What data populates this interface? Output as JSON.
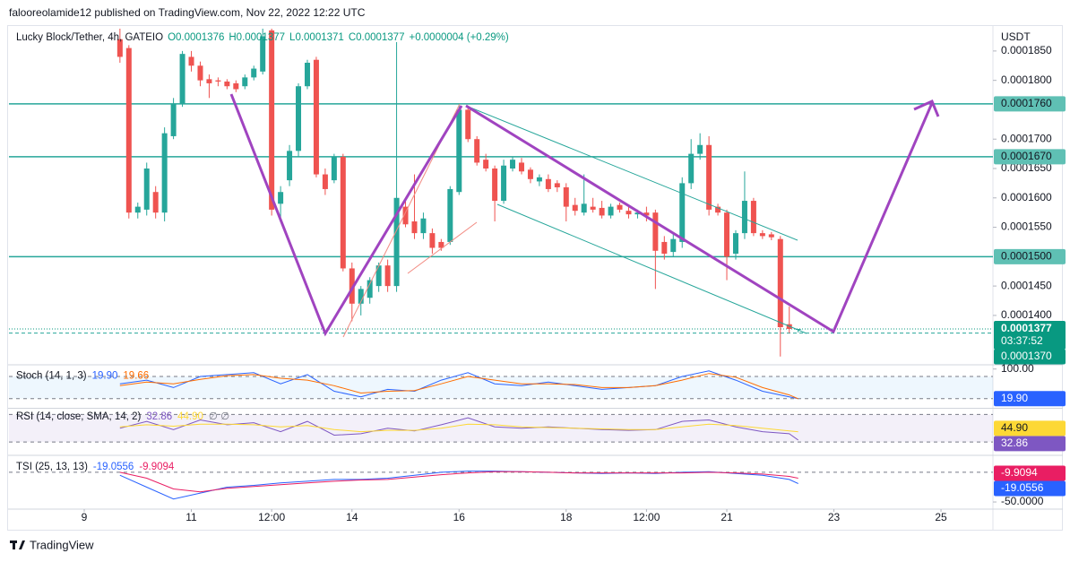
{
  "header": {
    "author_line": "falooreolamide12 published on TradingView.com, Nov 22, 2022 12:22 UTC"
  },
  "footer": {
    "brand": "TradingView"
  },
  "chart_data": [
    {
      "type": "candlestick",
      "title": "Lucky Block/Tether, 4h, GATEIO",
      "ohlc": [
        "O0.0001376",
        "H0.0001377",
        "L0.0001371",
        "C0.0001377",
        "+0.0000004 (+0.29%)"
      ],
      "y_unit": "USDT",
      "up_color": "#26a69a",
      "down_color": "#ef5350",
      "level_color": "#26a69a",
      "grid": false,
      "xlim": [
        7.594,
        25.97
      ],
      "xticks": [
        9,
        11,
        {
          "value": 12.5,
          "label": "12:00"
        },
        14,
        16,
        18,
        {
          "value": 19.5,
          "label": "12:00"
        },
        21,
        23,
        25
      ],
      "ylim": [
        0.0001319,
        0.0001891
      ],
      "yticks": [
        {
          "value": 0.000185,
          "label": "0.0001850"
        },
        {
          "value": 0.00018,
          "label": "0.0001800"
        },
        {
          "value": 0.00017,
          "label": "0.0001700"
        },
        {
          "value": 0.000165,
          "label": "0.0001650"
        },
        {
          "value": 0.00016,
          "label": "0.0001600"
        },
        {
          "value": 0.000155,
          "label": "0.0001550"
        },
        {
          "value": 0.000145,
          "label": "0.0001450"
        },
        {
          "value": 0.00014,
          "label": "0.0001400"
        }
      ],
      "levels": [
        {
          "value": 0.000176,
          "label": "0.0001760",
          "style": "solid"
        },
        {
          "value": 0.000167,
          "label": "0.0001670",
          "style": "solid"
        },
        {
          "value": 0.00015,
          "label": "0.0001500",
          "style": "solid"
        },
        {
          "value": 0.000137,
          "label": "0.0001370",
          "style": "dashed"
        }
      ],
      "current": {
        "value": 0.0001377,
        "label": "0.0001377",
        "countdown": "03:37:52"
      },
      "x": [
        9.6667,
        9.8333,
        10,
        10.1667,
        10.3333,
        10.5,
        10.6667,
        10.8333,
        11,
        11.1667,
        11.3333,
        11.5,
        11.6667,
        11.8333,
        12,
        12.1667,
        12.3333,
        12.5,
        12.6667,
        12.8333,
        13,
        13.1667,
        13.3333,
        13.5,
        13.6667,
        13.8333,
        14,
        14.1667,
        14.3333,
        14.5,
        14.6667,
        14.8333,
        15,
        15.1667,
        15.3333,
        15.5,
        15.6667,
        15.8333,
        16,
        16.1667,
        16.3333,
        16.5,
        16.6667,
        16.8333,
        17,
        17.1667,
        17.3333,
        17.5,
        17.6667,
        17.8333,
        18,
        18.1667,
        18.3333,
        18.5,
        18.6667,
        18.8333,
        19,
        19.1667,
        19.3333,
        19.5,
        19.6667,
        19.8333,
        20,
        20.1667,
        20.3333,
        20.5,
        20.6667,
        20.8333,
        21,
        21.1667,
        21.3333,
        21.5,
        21.6667,
        21.8333,
        22,
        22.1667,
        22.3333
      ],
      "open": [
        0.000187,
        0.0001855,
        0.0001575,
        0.000158,
        0.000161,
        0.0001575,
        0.0001705,
        0.000176,
        0.000184,
        0.0001825,
        0.0001802,
        0.00018,
        0.0001798,
        0.0001795,
        0.000179,
        0.0001805,
        0.0001815,
        0.0001885,
        0.000159,
        0.000163,
        0.000168,
        0.000179,
        0.0001835,
        0.000164,
        0.000163,
        0.000167,
        0.000148,
        0.000142,
        0.000143,
        0.000145,
        0.0001485,
        0.000145,
        0.0001585,
        0.000156,
        0.000154,
        0.000154,
        0.0001525,
        0.0001525,
        0.000161,
        0.000175,
        0.00017,
        0.0001665,
        0.000165,
        0.0001595,
        0.000165,
        0.000166,
        0.0001648,
        0.0001628,
        0.0001632,
        0.0001625,
        0.0001618,
        0.0001588,
        0.0001575,
        0.0001585,
        0.0001583,
        0.000157,
        0.0001588,
        0.0001578,
        0.0001572,
        0.0001575,
        0.0001575,
        0.0001525,
        0.0001508,
        0.0001525,
        0.0001625,
        0.0001675,
        0.000169,
        0.0001585,
        0.0001575,
        0.0001505,
        0.000154,
        0.0001595,
        0.000154,
        0.0001538,
        0.000153,
        0.0001385,
        0.0001376
      ],
      "high": [
        0.0001888,
        0.000186,
        0.0001592,
        0.000166,
        0.000162,
        0.000172,
        0.000177,
        0.000185,
        0.000185,
        0.0001832,
        0.000181,
        0.0001805,
        0.0001802,
        0.00018,
        0.000181,
        0.0001825,
        0.0001888,
        0.0001888,
        0.000162,
        0.000169,
        0.0001795,
        0.0001835,
        0.000184,
        0.000165,
        0.0001675,
        0.0001675,
        0.000149,
        0.000145,
        0.0001465,
        0.000149,
        0.0001495,
        0.0001865,
        0.00016,
        0.000164,
        0.0001575,
        0.0001548,
        0.000153,
        0.000162,
        0.000176,
        0.0001755,
        0.0001705,
        0.0001675,
        0.0001655,
        0.0001665,
        0.000167,
        0.0001668,
        0.0001652,
        0.000164,
        0.000164,
        0.000163,
        0.0001625,
        0.00016,
        0.000164,
        0.00016,
        0.0001595,
        0.000159,
        0.0001592,
        0.0001585,
        0.000158,
        0.0001585,
        0.000158,
        0.0001535,
        0.000154,
        0.0001635,
        0.00017,
        0.000171,
        0.0001705,
        0.000159,
        0.000158,
        0.0001545,
        0.0001645,
        0.00016,
        0.0001545,
        0.0001542,
        0.0001535,
        0.0001415,
        0.0001377
      ],
      "low": [
        0.000183,
        0.0001565,
        0.0001565,
        0.000157,
        0.0001565,
        0.000156,
        0.00017,
        0.0001755,
        0.0001815,
        0.000179,
        0.000177,
        0.000179,
        0.0001785,
        0.000178,
        0.0001785,
        0.00018,
        0.000181,
        0.000157,
        0.0001565,
        0.000162,
        0.000167,
        0.0001785,
        0.0001635,
        0.0001605,
        0.0001625,
        0.0001475,
        0.000139,
        0.00014,
        0.000142,
        0.000144,
        0.000144,
        0.000144,
        0.000155,
        0.000153,
        0.000153,
        0.0001505,
        0.000151,
        0.000152,
        0.0001605,
        0.0001695,
        0.0001655,
        0.0001645,
        0.000156,
        0.000159,
        0.0001645,
        0.000164,
        0.0001625,
        0.000162,
        0.000161,
        0.000161,
        0.000156,
        0.000157,
        0.000157,
        0.0001575,
        0.0001565,
        0.0001565,
        0.0001575,
        0.0001565,
        0.0001565,
        0.000156,
        0.0001445,
        0.0001495,
        0.00015,
        0.0001515,
        0.0001615,
        0.0001665,
        0.000157,
        0.000157,
        0.000146,
        0.0001495,
        0.000153,
        0.0001535,
        0.000153,
        0.0001528,
        0.000133,
        0.000137,
        0.0001371
      ],
      "close": [
        0.000184,
        0.0001575,
        0.0001585,
        0.000165,
        0.0001575,
        0.000171,
        0.000176,
        0.0001845,
        0.0001825,
        0.00018,
        0.0001795,
        0.0001798,
        0.000179,
        0.0001785,
        0.0001805,
        0.000182,
        0.0001875,
        0.000158,
        0.000161,
        0.000168,
        0.000179,
        0.000183,
        0.000164,
        0.0001615,
        0.000167,
        0.000148,
        0.000142,
        0.0001445,
        0.000146,
        0.0001485,
        0.000145,
        0.00016,
        0.0001555,
        0.000154,
        0.0001565,
        0.0001515,
        0.0001515,
        0.0001615,
        0.000175,
        0.00017,
        0.000166,
        0.000165,
        0.0001595,
        0.0001655,
        0.0001665,
        0.0001645,
        0.0001632,
        0.0001635,
        0.0001615,
        0.0001618,
        0.0001585,
        0.0001578,
        0.000159,
        0.000158,
        0.000157,
        0.0001585,
        0.000158,
        0.0001572,
        0.0001575,
        0.000157,
        0.000151,
        0.0001505,
        0.000153,
        0.0001625,
        0.0001675,
        0.000169,
        0.000158,
        0.0001575,
        0.00015,
        0.000154,
        0.0001595,
        0.000154,
        0.0001535,
        0.0001533,
        0.000138,
        0.0001377,
        0.0001377
      ]
    },
    {
      "type": "line",
      "title": "Stoch (14, 1, 3)",
      "xlim": [
        7.594,
        25.97
      ],
      "ylim": [
        0,
        100
      ],
      "yticks": [
        {
          "value": 100,
          "label": "100.00"
        }
      ],
      "hlines": [
        80,
        20
      ],
      "band_fill": "rgba(33,150,243,0.08)",
      "x": [
        9.6667,
        10.1667,
        10.6667,
        11.1667,
        11.6667,
        12.1667,
        12.6667,
        13.1667,
        13.6667,
        14.1667,
        14.6667,
        15.1667,
        15.6667,
        16.1667,
        16.6667,
        17.1667,
        17.6667,
        18.1667,
        18.6667,
        19.1667,
        19.6667,
        20.1667,
        20.6667,
        21.1667,
        21.6667,
        22.1667,
        22.3333
      ],
      "series": [
        {
          "color": "#2962ff",
          "current_label": "19.90",
          "axis_box": true,
          "values": [
            60,
            70,
            50,
            80,
            85,
            90,
            60,
            85,
            40,
            25,
            45,
            40,
            70,
            90,
            60,
            55,
            65,
            55,
            45,
            50,
            55,
            80,
            95,
            70,
            40,
            25,
            19.9
          ]
        },
        {
          "color": "#ff6d00",
          "current_label": "19.66",
          "axis_box": false,
          "values": [
            55,
            65,
            60,
            72,
            82,
            85,
            75,
            70,
            55,
            35,
            40,
            42,
            60,
            80,
            70,
            60,
            60,
            58,
            50,
            50,
            55,
            70,
            88,
            78,
            50,
            30,
            19.66
          ]
        }
      ]
    },
    {
      "type": "line",
      "title": "RSI (14, close, SMA, 14, 2)",
      "legend_extra": "∅ ∅",
      "xlim": [
        7.594,
        25.97
      ],
      "ylim": [
        25,
        77
      ],
      "hlines": [
        70,
        30
      ],
      "band_fill": "rgba(126,87,194,0.09)",
      "x": [
        9.6667,
        10.1667,
        10.6667,
        11.1667,
        11.6667,
        12.1667,
        12.6667,
        13.1667,
        13.6667,
        14.1667,
        14.6667,
        15.1667,
        15.6667,
        16.1667,
        16.6667,
        17.1667,
        17.6667,
        18.1667,
        18.6667,
        19.1667,
        19.6667,
        20.1667,
        20.6667,
        21.1667,
        21.6667,
        22.1667,
        22.3333
      ],
      "series": [
        {
          "color": "#7e57c2",
          "current_label": "32.86",
          "axis_box": true,
          "values": [
            50,
            60,
            48,
            62,
            55,
            58,
            45,
            60,
            40,
            42,
            50,
            46,
            55,
            65,
            52,
            50,
            52,
            50,
            48,
            47,
            48,
            60,
            62,
            52,
            45,
            42,
            32.86
          ]
        },
        {
          "color": "#fdd835",
          "current_label": "44.90",
          "axis_box": true,
          "values": [
            52,
            55,
            53,
            56,
            56,
            55,
            52,
            54,
            48,
            45,
            47,
            47,
            50,
            56,
            55,
            52,
            51,
            50,
            49,
            48,
            48,
            52,
            56,
            54,
            50,
            46,
            44.9
          ]
        }
      ]
    },
    {
      "type": "line",
      "title": "TSI (25, 13, 13)",
      "xlim": [
        7.594,
        25.97
      ],
      "ylim": [
        -59,
        21
      ],
      "yticks": [
        {
          "value": -50,
          "label": "-50.0000"
        }
      ],
      "hlines": [
        0
      ],
      "x": [
        9.6667,
        10.1667,
        10.6667,
        11.1667,
        11.6667,
        12.1667,
        12.6667,
        13.1667,
        13.6667,
        14.1667,
        14.6667,
        15.1667,
        15.6667,
        16.1667,
        16.6667,
        17.1667,
        17.6667,
        18.1667,
        18.6667,
        19.1667,
        19.6667,
        20.1667,
        20.6667,
        21.1667,
        21.6667,
        22.1667,
        22.3333
      ],
      "series": [
        {
          "color": "#2962ff",
          "current_label": "-19.0556",
          "axis_box": true,
          "values": [
            -5,
            -25,
            -45,
            -35,
            -25,
            -22,
            -18,
            -15,
            -12,
            -12,
            -10,
            -5,
            0,
            2,
            2,
            1,
            0,
            -1,
            -2,
            -1,
            -2,
            0,
            1,
            -2,
            -5,
            -12,
            -19.0556
          ]
        },
        {
          "color": "#e91e63",
          "current_label": "-9.9094",
          "axis_box": true,
          "values": [
            0,
            -10,
            -28,
            -33,
            -27,
            -24,
            -21,
            -18,
            -15,
            -13,
            -12,
            -8,
            -4,
            -1,
            1,
            1,
            0,
            -1,
            -1,
            -1,
            -1,
            -1,
            0,
            -1,
            -3,
            -7,
            -9.9094
          ]
        }
      ]
    }
  ]
}
